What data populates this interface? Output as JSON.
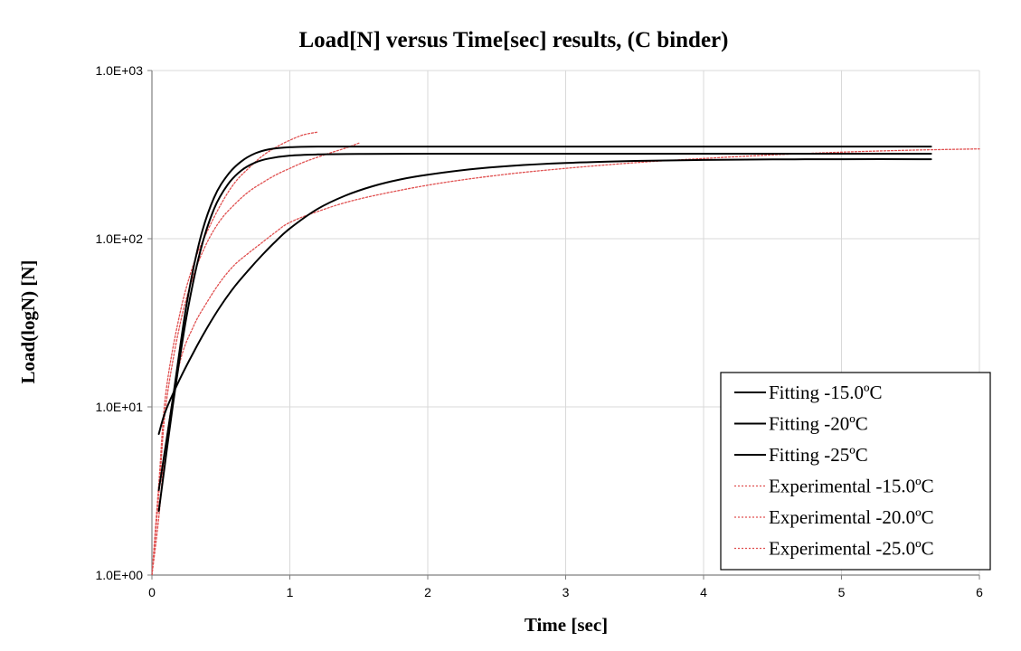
{
  "chart_data": {
    "type": "line",
    "title": "Load[N] versus Time[sec] results, (C binder)",
    "xlabel": "Time [sec]",
    "ylabel": "Load(logN) [N]",
    "xlim": [
      0,
      6
    ],
    "ylim": [
      1,
      1000
    ],
    "yscale": "log",
    "grid": true,
    "legend_position": "bottom-right",
    "x_ticks": [
      0,
      1,
      2,
      3,
      4,
      5,
      6
    ],
    "x_tick_labels": [
      "0",
      "1",
      "2",
      "3",
      "4",
      "5",
      "6"
    ],
    "y_ticks": [
      1,
      10,
      100,
      1000
    ],
    "y_tick_labels": [
      "1.0E+00",
      "1.0E+01",
      "1.0E+02",
      "1.0E+03"
    ],
    "series": [
      {
        "name": "Fitting -15.0ºC",
        "style": "solid",
        "color": "#000000",
        "x": [
          0.05,
          0.15,
          0.25,
          0.35,
          0.45,
          0.55,
          0.65,
          0.75,
          0.85,
          1.0,
          1.2,
          1.5,
          2.0,
          3.0,
          4.0,
          5.0,
          5.65
        ],
        "y": [
          2.4,
          10,
          34,
          84,
          150,
          210,
          255,
          284,
          300,
          312,
          317,
          319,
          320,
          320,
          320,
          320,
          320
        ]
      },
      {
        "name": "Fitting -20ºC",
        "style": "solid",
        "color": "#000000",
        "x": [
          0.05,
          0.15,
          0.25,
          0.35,
          0.45,
          0.55,
          0.65,
          0.75,
          0.85,
          1.0,
          1.2,
          1.5,
          2.0,
          3.0,
          4.0,
          5.0,
          5.65
        ],
        "y": [
          3.2,
          11,
          40,
          100,
          175,
          240,
          289,
          322,
          340,
          350,
          353,
          353,
          353,
          353,
          353,
          353,
          353
        ]
      },
      {
        "name": "Fitting -25ºC",
        "style": "solid",
        "color": "#000000",
        "x": [
          0.05,
          0.1,
          0.2,
          0.3,
          0.4,
          0.5,
          0.6,
          0.7,
          0.8,
          0.9,
          1.0,
          1.2,
          1.4,
          1.6,
          1.8,
          2.0,
          2.3,
          2.6,
          3.0,
          3.5,
          4.0,
          4.5,
          5.0,
          5.65
        ],
        "y": [
          6.9,
          9.5,
          14.5,
          21,
          29.5,
          40,
          52,
          65,
          80,
          97,
          115,
          150,
          180,
          205,
          225,
          240,
          258,
          271,
          282,
          290,
          294,
          296,
          297,
          297
        ]
      },
      {
        "name": "Experimental -15.0ºC",
        "style": "dotted",
        "color": "#e05050",
        "x": [
          0.0,
          0.05,
          0.1,
          0.2,
          0.3,
          0.4,
          0.5,
          0.6,
          0.7,
          0.8,
          0.9,
          1.0,
          1.1,
          1.2
        ],
        "y": [
          1.0,
          3.5,
          12,
          35,
          70,
          110,
          160,
          215,
          262,
          310,
          350,
          385,
          415,
          430
        ]
      },
      {
        "name": "Experimental -20.0ºC",
        "style": "dotted",
        "color": "#e05050",
        "x": [
          0.0,
          0.05,
          0.1,
          0.2,
          0.3,
          0.4,
          0.5,
          0.6,
          0.7,
          0.8,
          0.9,
          1.0,
          1.1,
          1.2,
          1.3,
          1.4,
          1.5
        ],
        "y": [
          1.0,
          3.0,
          10,
          30,
          60,
          95,
          130,
          160,
          190,
          215,
          240,
          262,
          285,
          305,
          325,
          345,
          370
        ]
      },
      {
        "name": "Experimental -25.0ºC",
        "style": "dotted",
        "color": "#e05050",
        "x": [
          0.0,
          0.05,
          0.1,
          0.2,
          0.3,
          0.4,
          0.5,
          0.6,
          0.7,
          0.8,
          0.9,
          1.0,
          1.2,
          1.5,
          2.0,
          2.5,
          3.0,
          3.5,
          4.0,
          4.5,
          5.0,
          5.5,
          6.0
        ],
        "y": [
          1.0,
          2.2,
          6.0,
          18,
          30,
          42,
          56,
          70,
          82,
          95,
          110,
          125,
          145,
          172,
          208,
          238,
          262,
          283,
          300,
          315,
          327,
          336,
          342
        ]
      }
    ]
  }
}
